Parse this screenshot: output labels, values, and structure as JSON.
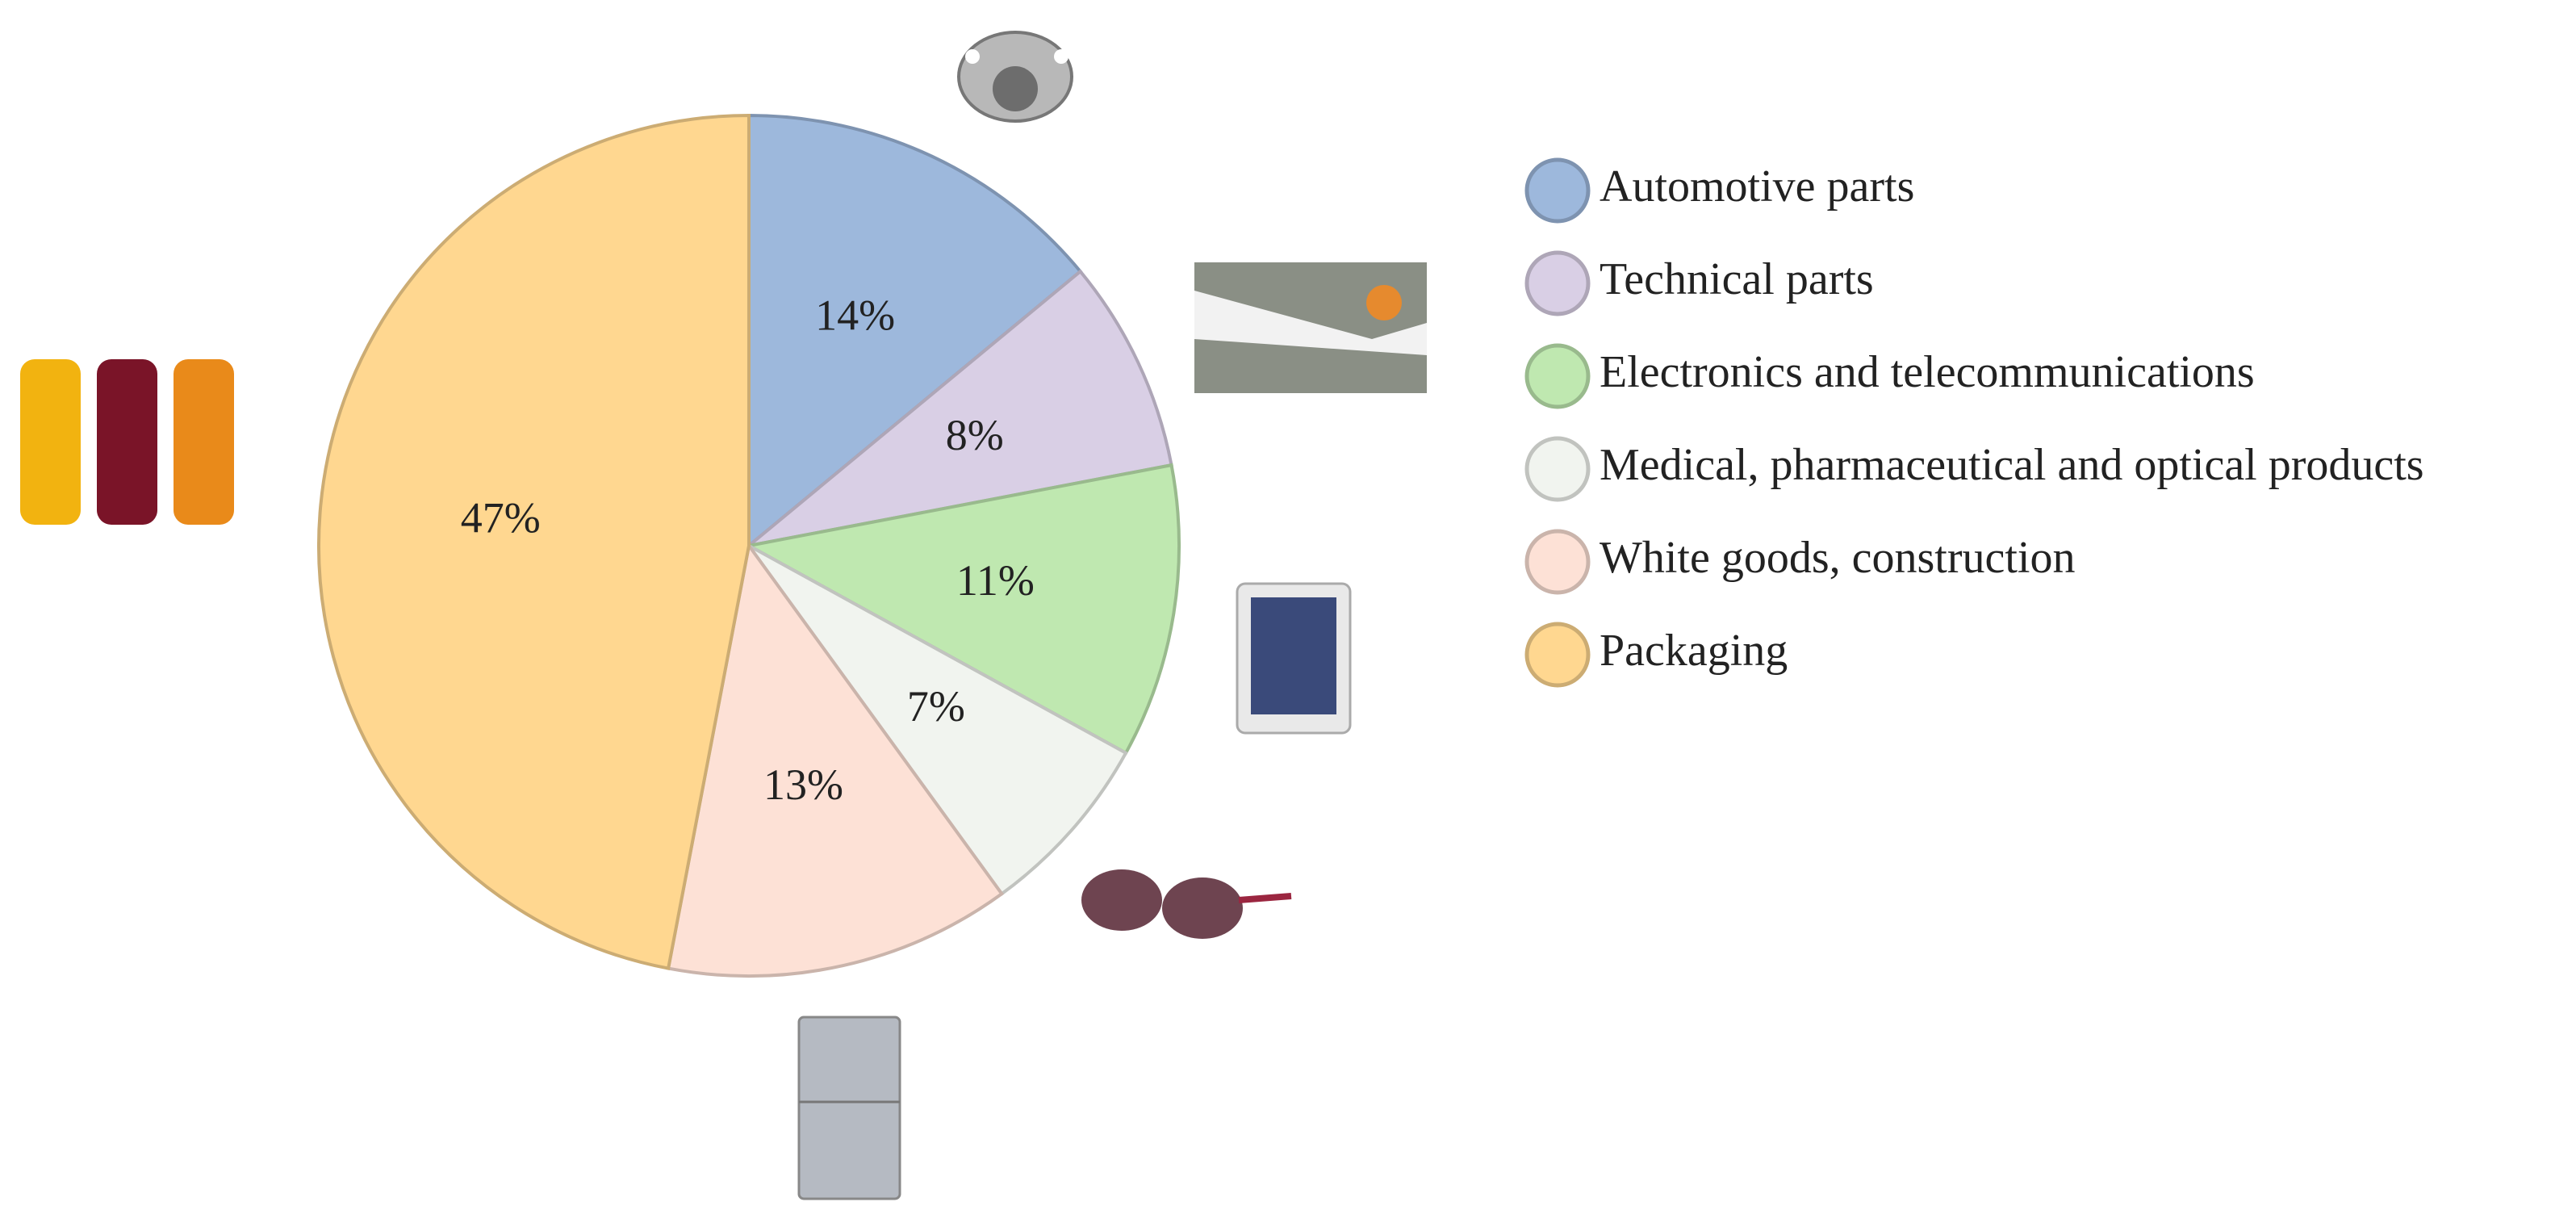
{
  "chart_data": {
    "type": "pie",
    "categories": [
      "Automotive parts",
      "Technical parts",
      "Electronics and telecommunications",
      "Medical, pharmaceutical and optical products",
      "White goods, construction",
      "Packaging"
    ],
    "values": [
      14,
      8,
      11,
      7,
      13,
      47
    ],
    "value_labels": [
      "14%",
      "8%",
      "11%",
      "7%",
      "13%",
      "47%"
    ],
    "colors": [
      "#9db8dc",
      "#d9cfe5",
      "#bfe8b0",
      "#f1f4ef",
      "#fde1d6",
      "#ffd790"
    ],
    "legend": "right"
  }
}
